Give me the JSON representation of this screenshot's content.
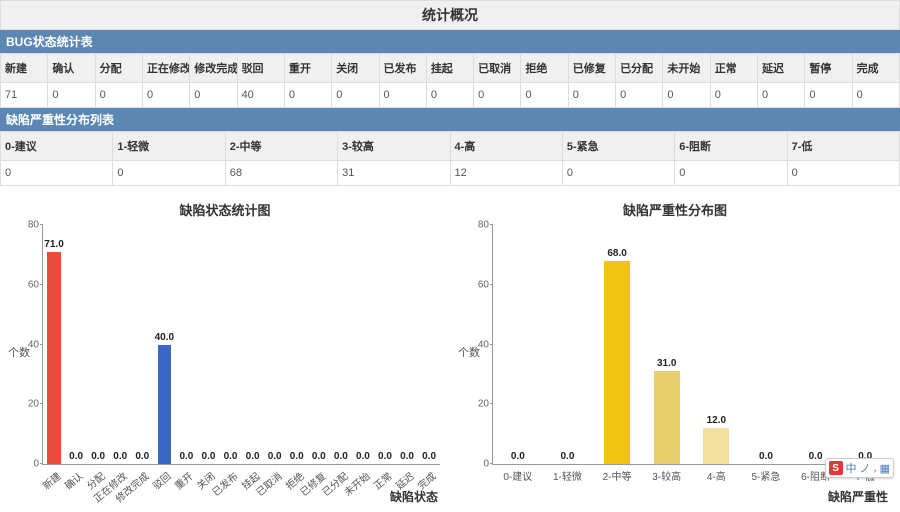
{
  "overview_title": "统计概况",
  "bug_table": {
    "header": "BUG状态统计表",
    "columns": [
      "新建",
      "确认",
      "分配",
      "正在修改",
      "修改完成",
      "驳回",
      "重开",
      "关闭",
      "已发布",
      "挂起",
      "已取消",
      "拒绝",
      "已修复",
      "已分配",
      "未开始",
      "正常",
      "延迟",
      "暂停",
      "完成"
    ],
    "values": [
      "71",
      "0",
      "0",
      "0",
      "0",
      "40",
      "0",
      "0",
      "0",
      "0",
      "0",
      "0",
      "0",
      "0",
      "0",
      "0",
      "0",
      "0",
      "0"
    ]
  },
  "severity_table": {
    "header": "缺陷严重性分布列表",
    "columns": [
      "0-建议",
      "1-轻微",
      "2-中等",
      "3-较高",
      "4-高",
      "5-紧急",
      "6-阻断",
      "7-低"
    ],
    "values": [
      "0",
      "0",
      "68",
      "31",
      "12",
      "0",
      "0",
      "0"
    ]
  },
  "chart1": {
    "title": "缺陷状态统计图",
    "ylabel": "个数",
    "xaxis_title": "缺陷状态",
    "ylim": [
      0,
      80
    ],
    "ytick_step": 20,
    "categories": [
      "新建",
      "确认",
      "分配",
      "正在修改",
      "修改完成",
      "驳回",
      "重开",
      "关闭",
      "已发布",
      "挂起",
      "已取消",
      "拒绝",
      "已修复",
      "已分配",
      "未开始",
      "正常",
      "延迟",
      "完成"
    ],
    "values": [
      71,
      0,
      0,
      0,
      0,
      40,
      0,
      0,
      0,
      0,
      0,
      0,
      0,
      0,
      0,
      0,
      0,
      0
    ],
    "value_labels": [
      "71.0",
      "0.0",
      "0.0",
      "0.0",
      "0.0",
      "40.0",
      "0.0",
      "0.0",
      "0.0",
      "0.0",
      "0.0",
      "0.0",
      "0.0",
      "0.0",
      "0.0",
      "0.0",
      "0.0",
      "0.0"
    ],
    "bar_colors": [
      "#e74c3c",
      "#3a67c7",
      "#3a67c7",
      "#3a67c7",
      "#3a67c7",
      "#3a67c7",
      "#3a67c7",
      "#3a67c7",
      "#3a67c7",
      "#3a67c7",
      "#3a67c7",
      "#3a67c7",
      "#3a67c7",
      "#3a67c7",
      "#3a67c7",
      "#3a67c7",
      "#3a67c7",
      "#3a67c7"
    ],
    "label_fontsize": 10,
    "rotate_xticks": true,
    "axis_color": "#999999",
    "background_color": "#ffffff"
  },
  "chart2": {
    "title": "缺陷严重性分布图",
    "ylabel": "个数",
    "xaxis_title": "缺陷严重性",
    "ylim": [
      0,
      80
    ],
    "ytick_step": 20,
    "categories": [
      "0-建议",
      "1-轻微",
      "2-中等",
      "3-较高",
      "4-高",
      "5-紧急",
      "6-阻断",
      "7-低"
    ],
    "values": [
      0,
      0,
      68,
      31,
      12,
      0,
      0,
      0
    ],
    "value_labels": [
      "0.0",
      "0.0",
      "68.0",
      "31.0",
      "12.0",
      "0.0",
      "0.0",
      "0.0"
    ],
    "bar_colors": [
      "#f1c40f",
      "#f1c40f",
      "#f1c40f",
      "#e9cf6a",
      "#f3e0a0",
      "#f1c40f",
      "#f1c40f",
      "#f1c40f"
    ],
    "label_fontsize": 10,
    "rotate_xticks": false,
    "axis_color": "#999999",
    "background_color": "#ffffff"
  },
  "ime": {
    "badge": "S",
    "parts": [
      "中",
      "ノ",
      ",",
      "▦"
    ]
  }
}
